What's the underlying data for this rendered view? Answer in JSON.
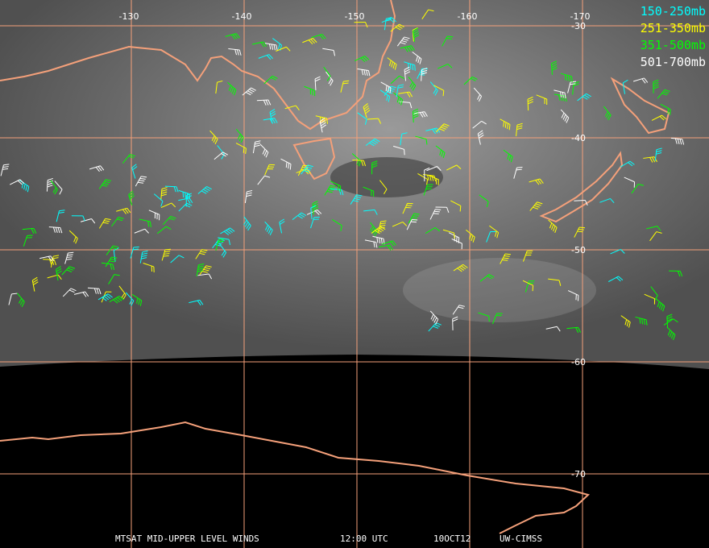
{
  "map": {
    "lon_labels": [
      "-130",
      "-140",
      "-150",
      "-160",
      "-170"
    ],
    "lat_labels": [
      "-30",
      "-40",
      "-50",
      "-60",
      "-70"
    ]
  },
  "legend": [
    {
      "label": "150-250mb",
      "color": "#00ffff"
    },
    {
      "label": "251-350mb",
      "color": "#ffff00"
    },
    {
      "label": "351-500mb",
      "color": "#00ff00"
    },
    {
      "label": "501-700mb",
      "color": "#ffffff"
    }
  ],
  "footer": {
    "title": "MTSAT MID-UPPER LEVEL WINDS",
    "time": "12:00 UTC",
    "date": "10OCT12",
    "source": "UW-CIMSS"
  }
}
